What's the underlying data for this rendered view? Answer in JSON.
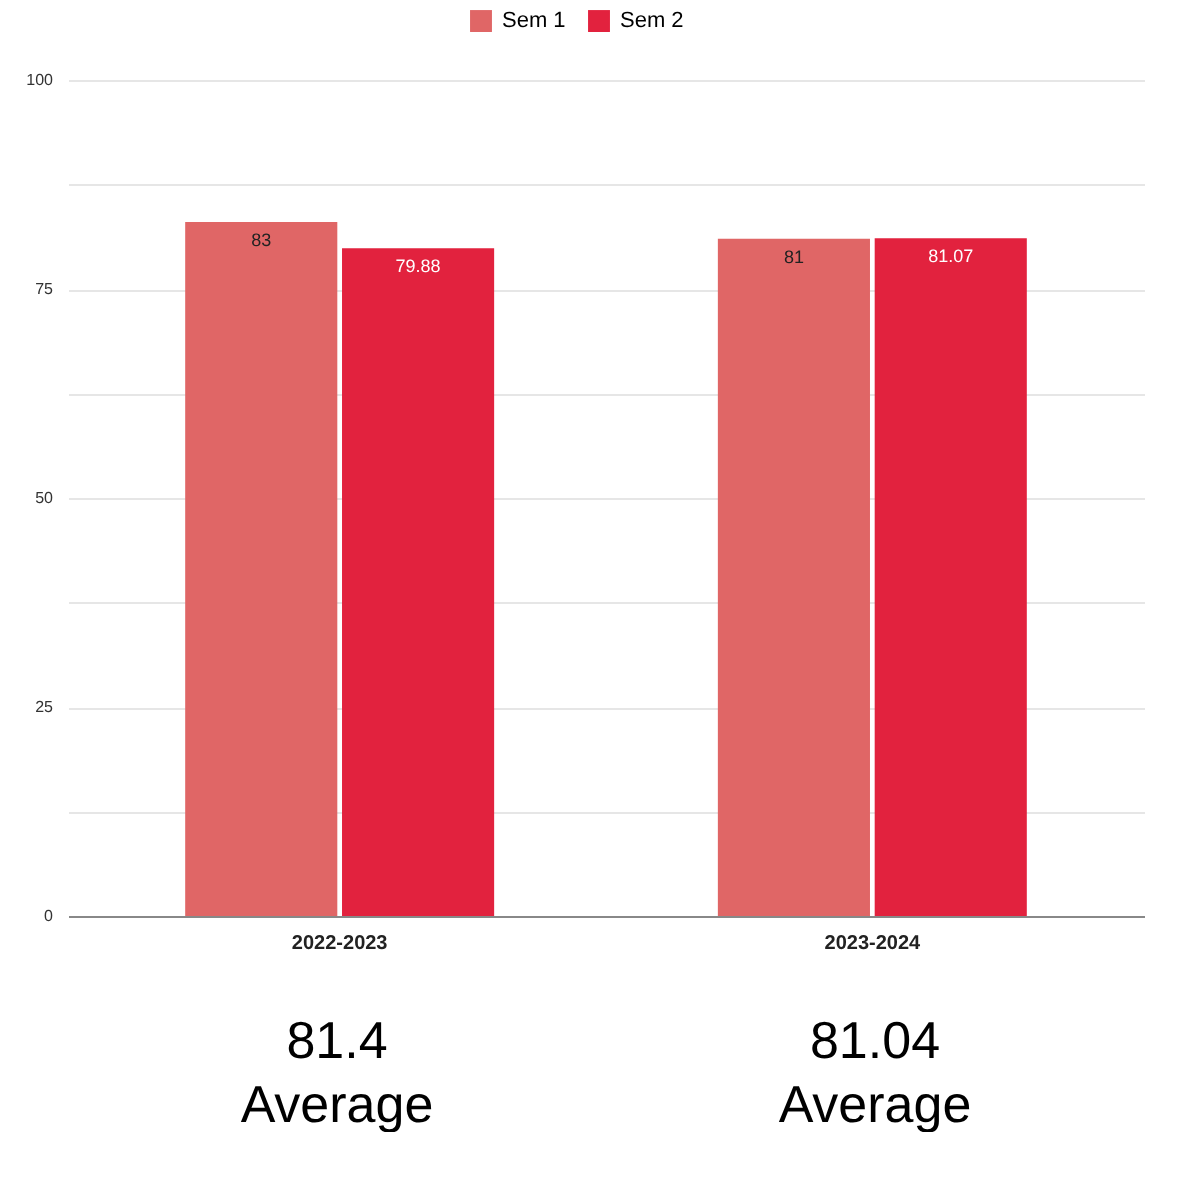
{
  "chart_data": {
    "type": "bar",
    "categories": [
      "2022-2023",
      "2023-2024"
    ],
    "series": [
      {
        "name": "Sem 1",
        "color": "#e06666",
        "values": [
          83,
          81
        ]
      },
      {
        "name": "Sem 2",
        "color": "#e2223e",
        "values": [
          79.88,
          81.07
        ]
      }
    ],
    "ylim": [
      0,
      100
    ],
    "yticks": [
      0,
      {
        "value": 12.5,
        "label": null
      },
      25,
      {
        "value": 37.5,
        "label": null
      },
      50,
      {
        "value": 62.5,
        "label": null
      },
      75,
      {
        "value": 87.5,
        "label": null
      },
      100
    ],
    "grid": "y",
    "legend": "top",
    "data_labels": true,
    "annotations": [
      "81.4\nAverage",
      "81.04\nAverage"
    ]
  }
}
